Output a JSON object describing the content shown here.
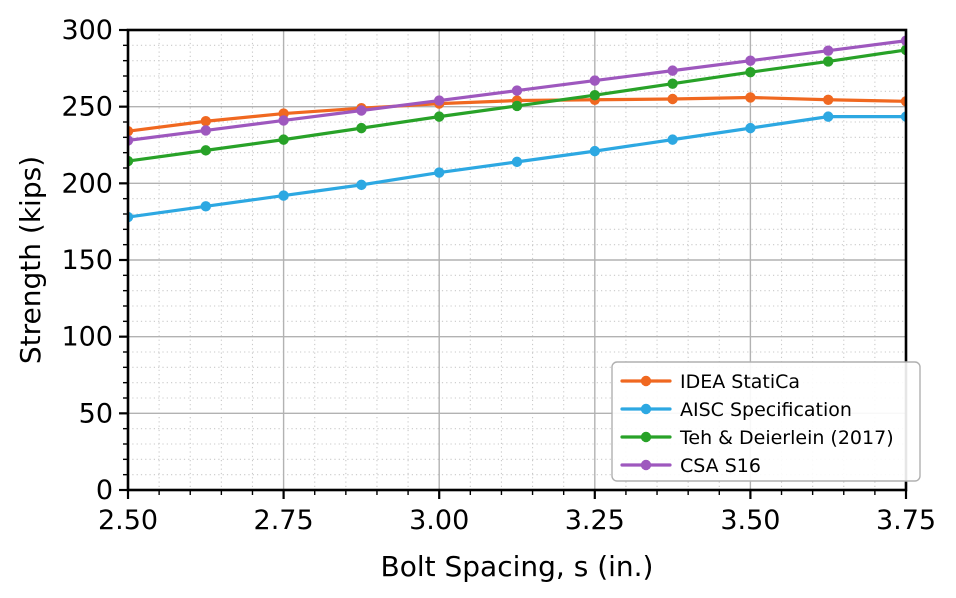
{
  "figure": {
    "background": "#ffffff",
    "xlabel": "Bolt Spacing, s (in.)",
    "ylabel": "Strength (kips)"
  },
  "chart_data": {
    "type": "line",
    "title": "",
    "xlabel": "Bolt Spacing, s (in.)",
    "ylabel": "Strength (kips)",
    "xlim": [
      2.5,
      3.75
    ],
    "ylim": [
      0,
      300
    ],
    "x_tick_labels": [
      "2.50",
      "2.75",
      "3.00",
      "3.25",
      "3.50",
      "3.75"
    ],
    "x_major_ticks": [
      2.5,
      2.75,
      3.0,
      3.25,
      3.5,
      3.75
    ],
    "y_tick_labels": [
      "0",
      "50",
      "100",
      "150",
      "200",
      "250",
      "300"
    ],
    "y_major_ticks": [
      0,
      50,
      100,
      150,
      200,
      250,
      300
    ],
    "x_minor_step": 0.05,
    "y_minor_step": 10,
    "grid": {
      "major": true,
      "minor": true,
      "major_color": "#b2b2b2",
      "minor_color": "#c9c9c9"
    },
    "marker": "circle",
    "x": [
      2.5,
      2.625,
      2.75,
      2.875,
      3.0,
      3.125,
      3.25,
      3.375,
      3.5,
      3.625,
      3.75
    ],
    "series": [
      {
        "name": "IDEA StatiCa",
        "color": "#F06820",
        "values": [
          234,
          240.5,
          245.5,
          249,
          252,
          254,
          254.5,
          255,
          256,
          254.5,
          253.5
        ]
      },
      {
        "name": "AISC Specification",
        "color": "#2DA8E2",
        "values": [
          178,
          185,
          192,
          199,
          207,
          214,
          221,
          228.5,
          236,
          243.5,
          243.5
        ]
      },
      {
        "name": "Teh & Deierlein (2017)",
        "color": "#28A228",
        "values": [
          214.5,
          221.5,
          228.5,
          236,
          243.5,
          250.5,
          257.5,
          265,
          272.5,
          279.5,
          287
        ]
      },
      {
        "name": "CSA S16",
        "color": "#9E58BE",
        "values": [
          228,
          234.5,
          241,
          247.5,
          254,
          260.5,
          267,
          273.5,
          280,
          286.5,
          293
        ]
      }
    ],
    "legend": {
      "position": "lower right",
      "entries": [
        "IDEA StatiCa",
        "AISC Specification",
        "Teh & Deierlein (2017)",
        "CSA S16"
      ]
    }
  }
}
